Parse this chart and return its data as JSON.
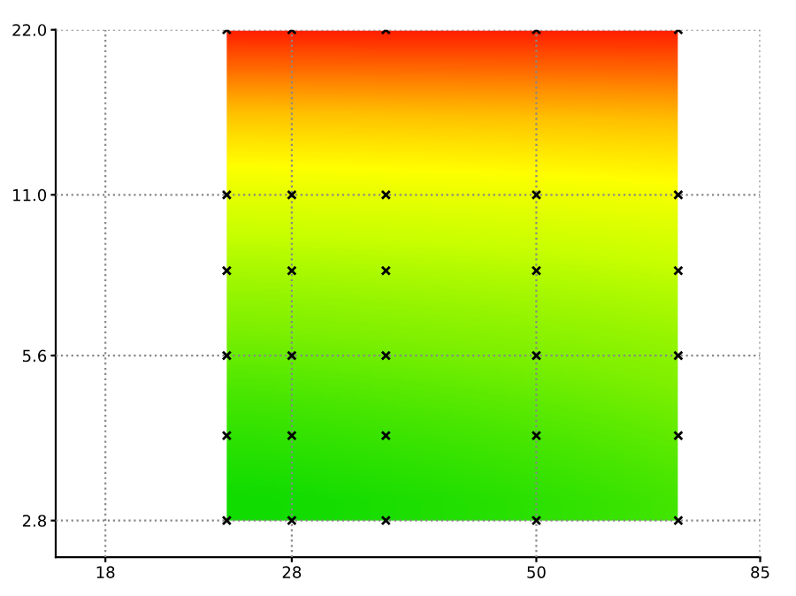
{
  "chart_data": {
    "type": "scatter",
    "log": "xy",
    "x": [
      24,
      28,
      35,
      50,
      70,
      24,
      28,
      35,
      50,
      70,
      24,
      28,
      35,
      50,
      70,
      24,
      28,
      35,
      50,
      70,
      24,
      28,
      35,
      50,
      70,
      24,
      28,
      35,
      50,
      70
    ],
    "values": [
      2.8,
      2.8,
      2.8,
      2.8,
      2.8,
      4,
      4,
      4,
      4,
      4,
      5.6,
      5.6,
      5.6,
      5.6,
      5.6,
      8,
      8,
      8,
      8,
      8,
      11,
      11,
      11,
      11,
      11,
      22,
      22,
      22,
      22,
      22
    ],
    "color": "#000000",
    "marker": "cross",
    "grid": true,
    "xlim": [
      16,
      85
    ],
    "ylim": [
      2.4,
      22
    ],
    "xticks": [
      18,
      28,
      50,
      85
    ],
    "yticks": [
      {
        "value": 2.8,
        "label": "2.8"
      },
      {
        "value": 5.6,
        "label": "5.6"
      },
      {
        "value": 11,
        "label": "11.0"
      },
      {
        "value": 22,
        "label": "22.0"
      }
    ]
  }
}
